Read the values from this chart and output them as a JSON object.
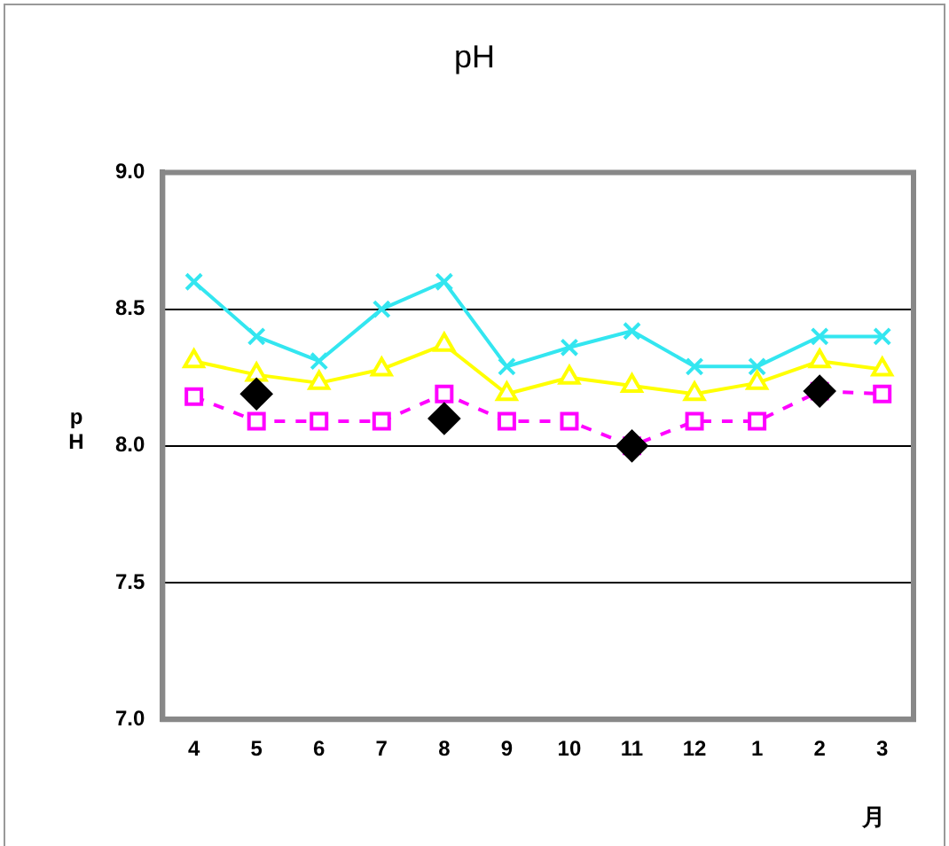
{
  "chart_data": {
    "type": "line",
    "title": "pH",
    "xlabel": "月",
    "ylabel": "pH",
    "categories": [
      "4",
      "5",
      "6",
      "7",
      "8",
      "9",
      "10",
      "11",
      "12",
      "1",
      "2",
      "3"
    ],
    "ylim": [
      7.0,
      9.0
    ],
    "yticks": [
      {
        "value": 7,
        "label": "7.0"
      },
      7.5,
      {
        "value": 8,
        "label": "8.0"
      },
      8.5,
      {
        "value": 9,
        "label": "9.0"
      }
    ],
    "grid": "y",
    "legend": false,
    "series": [
      {
        "color": "#33e6f0",
        "marker": "cross",
        "line_style": "solid",
        "values": [
          8.6,
          8.4,
          8.31,
          8.5,
          8.6,
          8.29,
          8.36,
          8.42,
          8.29,
          8.29,
          8.4,
          8.4
        ]
      },
      {
        "color": "#ffff00",
        "marker": "triangle",
        "line_style": "solid",
        "values": [
          8.31,
          8.26,
          8.23,
          8.28,
          8.37,
          8.19,
          8.25,
          8.22,
          8.19,
          8.23,
          8.31,
          8.28
        ]
      },
      {
        "color": "#ff00ff",
        "marker": "square",
        "line_style": "dashed",
        "values": [
          8.18,
          8.09,
          8.09,
          8.09,
          8.19,
          8.09,
          8.09,
          8.0,
          8.09,
          8.09,
          8.2,
          8.19
        ]
      },
      {
        "type": "scatter",
        "color": "#000000",
        "marker": "diamond",
        "values": [
          null,
          8.19,
          null,
          null,
          8.1,
          null,
          null,
          8.0,
          null,
          null,
          8.2,
          null
        ]
      }
    ]
  }
}
